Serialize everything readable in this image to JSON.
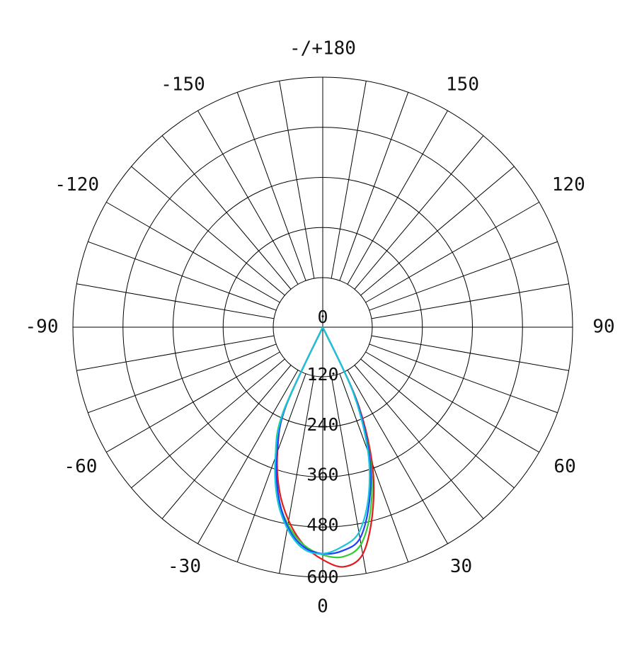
{
  "chart_data": {
    "type": "polar-line",
    "title": "",
    "theta_zero": "bottom",
    "theta_direction": "positive to the right",
    "angle_ticks": [
      0,
      30,
      60,
      90,
      120,
      150,
      180,
      -150,
      -120,
      -90,
      -60,
      -30
    ],
    "angle_tick_labels": [
      "0",
      "30",
      "60",
      "90",
      "120",
      "150",
      "-/+180",
      "-150",
      "-120",
      "-90",
      "-60",
      "-30"
    ],
    "radial_ticks": [
      0,
      120,
      240,
      360,
      480,
      600
    ],
    "radial_tick_labels": [
      "0",
      "120",
      "240",
      "360",
      "480",
      "600"
    ],
    "r_range": [
      0,
      600
    ],
    "radial_grid_step_deg": 10,
    "grid": true,
    "series": [
      {
        "color": "#e31a1c",
        "theta": [
          -28,
          -25,
          -20,
          -15,
          -10,
          -5,
          0,
          5,
          10,
          15,
          20,
          25,
          28
        ],
        "r": [
          0,
          220,
          330,
          420,
          490,
          545,
          580,
          600,
          575,
          480,
          360,
          200,
          0
        ]
      },
      {
        "color": "#33cc33",
        "theta": [
          -28,
          -25,
          -20,
          -15,
          -10,
          -5,
          0,
          5,
          10,
          15,
          20,
          25,
          28
        ],
        "r": [
          0,
          235,
          345,
          435,
          500,
          545,
          568,
          575,
          550,
          465,
          345,
          190,
          0
        ]
      },
      {
        "color": "#1f3fff",
        "theta": [
          -28,
          -25,
          -20,
          -15,
          -10,
          -5,
          0,
          5,
          10,
          15,
          20,
          25,
          28
        ],
        "r": [
          0,
          220,
          335,
          430,
          505,
          550,
          565,
          560,
          535,
          450,
          340,
          190,
          0
        ]
      },
      {
        "color": "#19c6d9",
        "theta": [
          -28,
          -25,
          -20,
          -15,
          -10,
          -5,
          0,
          5,
          10,
          15,
          20,
          25,
          28
        ],
        "r": [
          0,
          230,
          345,
          440,
          510,
          555,
          565,
          550,
          520,
          440,
          330,
          180,
          0
        ]
      }
    ]
  }
}
